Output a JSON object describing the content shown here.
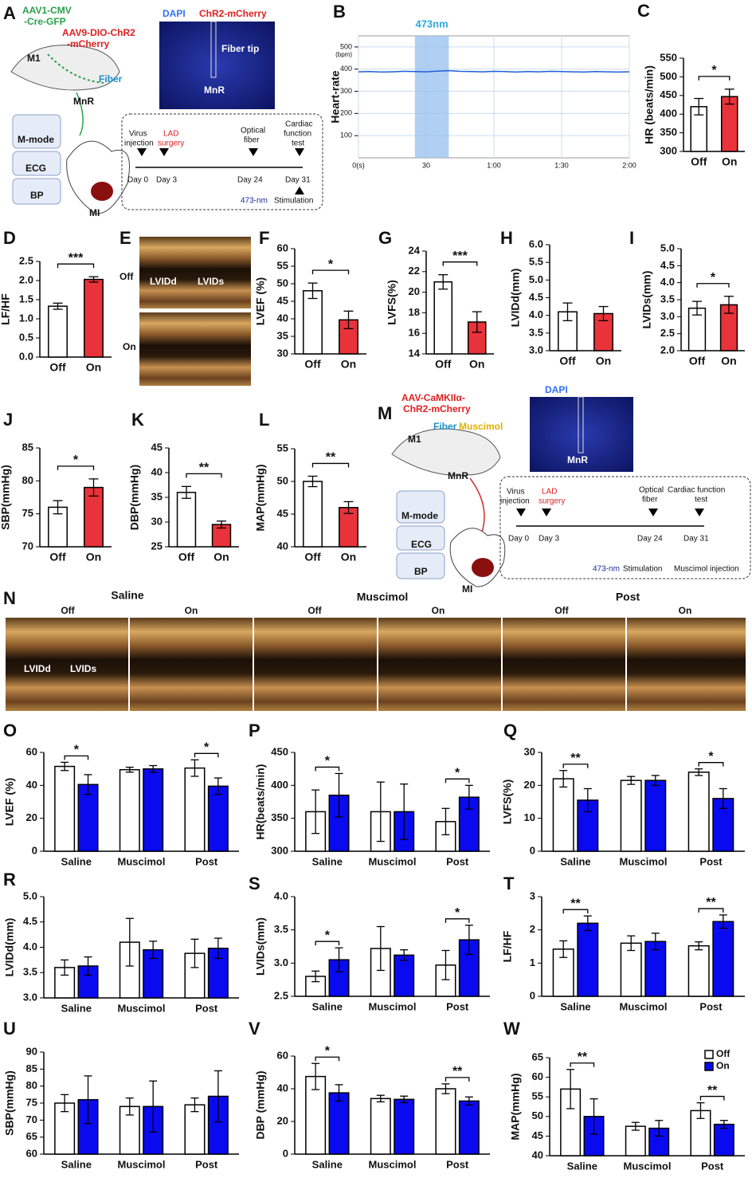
{
  "chart_data": [
    {
      "type": "line",
      "letter": "B",
      "ylabel": "Heart-rate",
      "yunit": "(bpm)",
      "xlim": [
        0,
        120
      ],
      "ylim": [
        0,
        550
      ],
      "xticks": [
        {
          "value": 0,
          "label": "0(s)"
        },
        30,
        {
          "value": 60,
          "label": "1:00"
        },
        {
          "value": 90,
          "label": "1:30"
        },
        {
          "value": 120,
          "label": "2:00"
        }
      ],
      "yticks": [
        100,
        200,
        300,
        400,
        500
      ],
      "grid": true,
      "highlight": {
        "label": "473nm",
        "range": [
          25,
          40
        ]
      },
      "x": [
        0,
        5,
        10,
        15,
        20,
        25,
        30,
        35,
        40,
        45,
        50,
        55,
        60,
        65,
        70,
        75,
        80,
        85,
        90,
        95,
        100,
        105,
        110,
        115,
        120
      ],
      "series": [
        {
          "color": "#1f5fd6",
          "values": [
            388,
            389,
            387,
            388,
            390,
            389,
            388,
            391,
            393,
            390,
            389,
            388,
            390,
            389,
            387,
            389,
            388,
            390,
            389,
            388,
            387,
            389,
            388,
            387,
            388
          ]
        }
      ]
    },
    {
      "type": "bar",
      "letter": "C",
      "ylabel": "HR (beats/min)",
      "ylim": [
        300,
        550
      ],
      "yticks": [
        300,
        350,
        400,
        450,
        500,
        550
      ],
      "categories": [
        "Off",
        "On"
      ],
      "values": [
        420,
        447
      ],
      "errors": [
        22,
        20
      ],
      "colors": [
        "#ffffff",
        "#e8333a"
      ],
      "significance": "*"
    },
    {
      "type": "bar",
      "letter": "D",
      "ylabel": "LF/HF",
      "ylim": [
        0,
        2.5
      ],
      "yticks": [
        {
          "value": 0,
          "label": "0.0"
        },
        0.5,
        {
          "value": 1,
          "label": "1.0"
        },
        1.5,
        {
          "value": 2,
          "label": "2.0"
        },
        2.5
      ],
      "categories": [
        "Off",
        "On"
      ],
      "values": [
        1.33,
        2.03
      ],
      "errors": [
        0.08,
        0.07
      ],
      "colors": [
        "#ffffff",
        "#e8333a"
      ],
      "significance": "***"
    },
    {
      "type": "bar",
      "letter": "F",
      "ylabel": "LVEF (%)",
      "ylim": [
        30,
        60
      ],
      "yticks": [
        30,
        35,
        40,
        45,
        50,
        55,
        60
      ],
      "categories": [
        "Off",
        "On"
      ],
      "values": [
        48,
        39.7
      ],
      "errors": [
        2.2,
        2.5
      ],
      "colors": [
        "#ffffff",
        "#e8333a"
      ],
      "significance": "*"
    },
    {
      "type": "bar",
      "letter": "G",
      "ylabel": "LVFS(%)",
      "ylim": [
        14,
        24
      ],
      "yticks": [
        14,
        16,
        18,
        20,
        22,
        24
      ],
      "categories": [
        "Off",
        "On"
      ],
      "values": [
        21,
        17.1
      ],
      "errors": [
        0.7,
        1.0
      ],
      "colors": [
        "#ffffff",
        "#e8333a"
      ],
      "significance": "***"
    },
    {
      "type": "bar",
      "letter": "H",
      "ylabel": "LVIDd(mm)",
      "ylim": [
        3,
        6
      ],
      "yticks": [
        {
          "value": 3,
          "label": "3.0"
        },
        3.5,
        {
          "value": 4,
          "label": "4.0"
        },
        4.5,
        {
          "value": 5,
          "label": "5.0"
        },
        5.5,
        {
          "value": 6,
          "label": "6.0"
        }
      ],
      "categories": [
        "Off",
        "On"
      ],
      "values": [
        4.1,
        4.05
      ],
      "errors": [
        0.25,
        0.2
      ],
      "colors": [
        "#ffffff",
        "#e8333a"
      ]
    },
    {
      "type": "bar",
      "letter": "I",
      "ylabel": "LVIDs(mm)",
      "ylim": [
        2,
        5
      ],
      "yticks": [
        {
          "value": 2,
          "label": "2.0"
        },
        2.5,
        {
          "value": 3,
          "label": "3.0"
        },
        3.5,
        {
          "value": 4,
          "label": "4.0"
        },
        4.5,
        {
          "value": 5,
          "label": "5.0"
        }
      ],
      "categories": [
        "Off",
        "On"
      ],
      "values": [
        3.25,
        3.35
      ],
      "errors": [
        0.2,
        0.25
      ],
      "colors": [
        "#ffffff",
        "#e8333a"
      ],
      "significance": "*"
    },
    {
      "type": "bar",
      "letter": "J",
      "ylabel": "SBP(mmHg)",
      "ylim": [
        70,
        85
      ],
      "yticks": [
        70,
        75,
        80,
        85
      ],
      "categories": [
        "Off",
        "On"
      ],
      "values": [
        76,
        79
      ],
      "errors": [
        1,
        1.3
      ],
      "colors": [
        "#ffffff",
        "#e8333a"
      ],
      "significance": "*"
    },
    {
      "type": "bar",
      "letter": "K",
      "ylabel": "DBP(mmHg)",
      "ylim": [
        25,
        45
      ],
      "yticks": [
        25,
        30,
        35,
        40,
        45
      ],
      "categories": [
        "Off",
        "On"
      ],
      "values": [
        36,
        29.5
      ],
      "errors": [
        1.2,
        0.7
      ],
      "colors": [
        "#ffffff",
        "#e8333a"
      ],
      "significance": "**"
    },
    {
      "type": "bar",
      "letter": "L",
      "ylabel": "MAP(mmHg)",
      "ylim": [
        40,
        55
      ],
      "yticks": [
        40,
        45,
        50,
        55
      ],
      "categories": [
        "Off",
        "On"
      ],
      "values": [
        50,
        46
      ],
      "errors": [
        0.8,
        0.9
      ],
      "colors": [
        "#ffffff",
        "#e8333a"
      ],
      "significance": "**"
    },
    {
      "type": "grouped_bar",
      "letter": "O",
      "ylabel": "LVEF (%)",
      "ylim": [
        0,
        60
      ],
      "yticks": [
        0,
        20,
        40,
        60
      ],
      "categories": [
        "Saline",
        "Muscimol",
        "Post"
      ],
      "series": [
        {
          "color": "#ffffff",
          "values": [
            51.5,
            49.5,
            50.5
          ],
          "errors": [
            2.5,
            1.5,
            5
          ]
        },
        {
          "color": "#0a0af0",
          "values": [
            40.5,
            50,
            39.5
          ],
          "errors": [
            6,
            2,
            5
          ]
        }
      ],
      "significance": [
        "*",
        null,
        "*"
      ]
    },
    {
      "type": "grouped_bar",
      "letter": "P",
      "ylabel": "HR(beats/min)",
      "ylim": [
        300,
        450
      ],
      "yticks": [
        300,
        350,
        400,
        450
      ],
      "categories": [
        "Saline",
        "Muscimol",
        "Post"
      ],
      "series": [
        {
          "color": "#ffffff",
          "values": [
            360,
            360,
            345
          ],
          "errors": [
            33,
            45,
            20
          ]
        },
        {
          "color": "#0a0af0",
          "values": [
            385,
            360,
            382
          ],
          "errors": [
            33,
            42,
            18
          ]
        }
      ],
      "significance": [
        "*",
        null,
        "*"
      ]
    },
    {
      "type": "grouped_bar",
      "letter": "Q",
      "ylabel": "LVFS(%)",
      "ylim": [
        0,
        30
      ],
      "yticks": [
        0,
        10,
        20,
        30
      ],
      "categories": [
        "Saline",
        "Muscimol",
        "Post"
      ],
      "series": [
        {
          "color": "#ffffff",
          "values": [
            22,
            21.5,
            24
          ],
          "errors": [
            2.5,
            1.2,
            1
          ]
        },
        {
          "color": "#0a0af0",
          "values": [
            15.5,
            21.5,
            16
          ],
          "errors": [
            3.5,
            1.5,
            3
          ]
        }
      ],
      "significance": [
        "**",
        null,
        "*"
      ]
    },
    {
      "type": "grouped_bar",
      "letter": "R",
      "ylabel": "LVIDd(mm)",
      "ylim": [
        3,
        5
      ],
      "yticks": [
        {
          "value": 3,
          "label": "3.0"
        },
        3.5,
        {
          "value": 4,
          "label": "4.0"
        },
        4.5,
        {
          "value": 5,
          "label": "5.0"
        }
      ],
      "categories": [
        "Saline",
        "Muscimol",
        "Post"
      ],
      "series": [
        {
          "color": "#ffffff",
          "values": [
            3.6,
            4.1,
            3.88
          ],
          "errors": [
            0.15,
            0.47,
            0.28
          ]
        },
        {
          "color": "#0a0af0",
          "values": [
            3.63,
            3.95,
            3.98
          ],
          "errors": [
            0.18,
            0.17,
            0.2
          ]
        }
      ]
    },
    {
      "type": "grouped_bar",
      "letter": "S",
      "ylabel": "LVIDs(mm)",
      "ylim": [
        2.5,
        4
      ],
      "yticks": [
        2.5,
        {
          "value": 3,
          "label": "3.0"
        },
        3.5,
        {
          "value": 4,
          "label": "4.0"
        }
      ],
      "categories": [
        "Saline",
        "Muscimol",
        "Post"
      ],
      "series": [
        {
          "color": "#ffffff",
          "values": [
            2.8,
            3.22,
            2.97
          ],
          "errors": [
            0.08,
            0.33,
            0.22
          ]
        },
        {
          "color": "#0a0af0",
          "values": [
            3.05,
            3.12,
            3.35
          ],
          "errors": [
            0.18,
            0.08,
            0.22
          ]
        }
      ],
      "significance": [
        "*",
        null,
        "*"
      ]
    },
    {
      "type": "grouped_bar",
      "letter": "T",
      "ylabel": "LF/HF",
      "ylim": [
        0,
        3
      ],
      "yticks": [
        0,
        1,
        2,
        3
      ],
      "categories": [
        "Saline",
        "Muscimol",
        "Post"
      ],
      "series": [
        {
          "color": "#ffffff",
          "values": [
            1.42,
            1.6,
            1.52
          ],
          "errors": [
            0.25,
            0.22,
            0.12
          ]
        },
        {
          "color": "#0a0af0",
          "values": [
            2.2,
            1.65,
            2.25
          ],
          "errors": [
            0.22,
            0.25,
            0.2
          ]
        }
      ],
      "significance": [
        "**",
        null,
        "**"
      ]
    },
    {
      "type": "grouped_bar",
      "letter": "U",
      "ylabel": "SBP(mmHg)",
      "ylim": [
        60,
        90
      ],
      "yticks": [
        60,
        65,
        70,
        75,
        80,
        85,
        90
      ],
      "categories": [
        "Saline",
        "Muscimol",
        "Post"
      ],
      "series": [
        {
          "color": "#ffffff",
          "values": [
            75,
            74,
            74.5
          ],
          "errors": [
            2.5,
            2.5,
            2
          ]
        },
        {
          "color": "#0a0af0",
          "values": [
            76,
            74,
            77
          ],
          "errors": [
            7,
            7.5,
            7.5
          ]
        }
      ]
    },
    {
      "type": "grouped_bar",
      "letter": "V",
      "ylabel": "DBP (mmHg)",
      "ylim": [
        0,
        60
      ],
      "yticks": [
        0,
        20,
        40,
        60
      ],
      "categories": [
        "Saline",
        "Muscimol",
        "Post"
      ],
      "series": [
        {
          "color": "#ffffff",
          "values": [
            47.5,
            34,
            40
          ],
          "errors": [
            8,
            2,
            3
          ]
        },
        {
          "color": "#0a0af0",
          "values": [
            37.5,
            33.5,
            32.5
          ],
          "errors": [
            5,
            2,
            2.5
          ]
        }
      ],
      "significance": [
        "*",
        null,
        "**"
      ]
    },
    {
      "type": "grouped_bar",
      "letter": "W",
      "ylabel": "MAP(mmHg)",
      "ylim": [
        40,
        65
      ],
      "yticks": [
        40,
        45,
        50,
        55,
        60,
        65
      ],
      "categories": [
        "Saline",
        "Muscimol",
        "Post"
      ],
      "legend": "upper right",
      "series": [
        {
          "name": "Off",
          "color": "#ffffff",
          "values": [
            57,
            47.5,
            51.5
          ],
          "errors": [
            5,
            1,
            2
          ]
        },
        {
          "name": "On",
          "color": "#0a0af0",
          "values": [
            50,
            47,
            48
          ],
          "errors": [
            4.5,
            2,
            1
          ]
        }
      ],
      "significance": [
        "**",
        null,
        "**"
      ]
    }
  ],
  "panel_a": {
    "letter": "A",
    "labels": [
      "AAV1-CMV",
      "-Cre-GFP",
      "AAV9-DIO-ChR2",
      "-mCherry",
      "M1",
      "Fiber",
      "MnR",
      "M-mode",
      "ECG",
      "BP",
      "MI",
      "DAPI",
      "ChR2-mCherry",
      "Fiber tip",
      "MnR",
      "Virus",
      "injection",
      "LAD",
      "surgery",
      "Optical",
      "fiber",
      "Cardiac",
      "function",
      "test",
      "Day 0",
      "Day 3",
      "Day 24",
      "Day 31",
      "473-nm",
      "Stimulation"
    ]
  },
  "panel_e": {
    "letter": "E",
    "labels": [
      "Off",
      "On",
      "LVIDd",
      "LVIDs"
    ]
  },
  "panel_m": {
    "letter": "M",
    "labels": [
      "AAV-CaMKIIα-",
      "ChR2-mCherry",
      "M1",
      "Fiber",
      "Muscimol",
      "MnR",
      "M-mode",
      "ECG",
      "BP",
      "MI",
      "DAPI",
      "MnR",
      "Virus",
      "injection",
      "LAD",
      "surgery",
      "Optical",
      "fiber",
      "Cardiac function",
      "test",
      "Day 0",
      "Day 3",
      "Day 24",
      "Day 31",
      "473-nm",
      "Stimulation",
      "Muscimol injection"
    ]
  },
  "panel_n": {
    "letter": "N",
    "groups": [
      "Saline",
      "Muscimol",
      "Post"
    ],
    "conditions": [
      "Off",
      "On",
      "Off",
      "On",
      "Off",
      "On"
    ],
    "labels": [
      "LVIDd",
      "LVIDs"
    ]
  }
}
